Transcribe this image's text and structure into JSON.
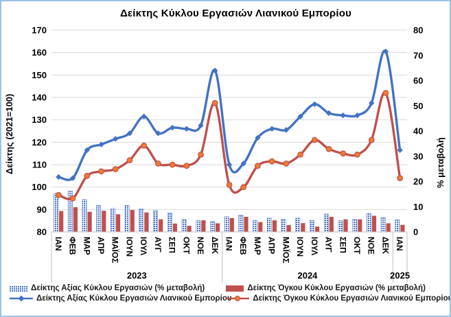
{
  "colors": {
    "value_blue": "#4472C4",
    "volume_red": "#C0504D",
    "marker_orange": "#ED7D31",
    "gridline": "#D9D9D9",
    "axis_line": "#BFBFBF",
    "frame_border": "#9DC3E6",
    "text": "#000000"
  },
  "chart_data": {
    "type": "combo: bars (secondary axis) + smoothed lines (primary axis)",
    "title": "Δείκτης Κύκλου Εργασιών Λιανικού Εμπορίου",
    "axis_left": {
      "title": "Δείκτης (2021=100)",
      "min": 80,
      "max": 170,
      "step": 10
    },
    "axis_right": {
      "title": "% μεταβολή",
      "min": 0,
      "max": 80,
      "step": 10
    },
    "grid": "horizontal only",
    "categories": [
      "ΙΑΝ",
      "ΦΕΒ",
      "ΜΑΡ",
      "ΑΠΡ",
      "ΜΑΪΟΣ",
      "ΙΟΥΝ",
      "ΙΟΥΛ",
      "ΑΥΓ",
      "ΣΕΠ",
      "ΟΚΤ",
      "ΝΟΕ",
      "ΔΕΚ",
      "ΙΑΝ",
      "ΦΕΒ",
      "ΜΑΡ",
      "ΑΠΡ",
      "ΜΑΪΟΣ",
      "ΙΟΥΝ",
      "ΙΟΥΛ",
      "ΑΥΓ",
      "ΣΕΠ",
      "ΟΚΤ",
      "ΝΟΕ",
      "ΔΕΚ",
      "ΙΑΝ"
    ],
    "year_groups": [
      {
        "label": "2023",
        "months": 12
      },
      {
        "label": "2024",
        "months": 12
      },
      {
        "label": "2025",
        "months": 1
      }
    ],
    "series": [
      {
        "name": "Δείκτης Αξίας Κύκλου Εργασιών (% μεταβολή)",
        "kind": "bar",
        "axis": "right",
        "color": "#4472C4",
        "fill": "hatched",
        "values": [
          15.2,
          16.2,
          12.8,
          10.5,
          9.3,
          10.5,
          9.1,
          8.5,
          7.5,
          4.9,
          4.6,
          4.1,
          6.1,
          6.7,
          4.6,
          5.5,
          5.0,
          5.5,
          4.6,
          7.1,
          4.5,
          5.0,
          7.3,
          5.7,
          4.8
        ]
      },
      {
        "name": "Δείκτης Όγκου Κύκλου Εργασιών (% μεταβολή)",
        "kind": "bar",
        "axis": "right",
        "color": "#C0504D",
        "fill": "solid",
        "values": [
          8.3,
          9.8,
          8.0,
          8.4,
          7.0,
          8.7,
          7.7,
          5.0,
          3.3,
          2.4,
          4.6,
          3.4,
          5.5,
          6.0,
          3.9,
          4.6,
          2.7,
          3.5,
          2.1,
          6.0,
          5.0,
          5.0,
          6.4,
          3.4,
          2.8
        ]
      },
      {
        "name": "Δείκτης Αξίας Κύκλου Εργασιών Λιανικού Εμπορίου",
        "kind": "line",
        "axis": "left",
        "color": "#4472C4",
        "marker": "diamond",
        "values": [
          104.5,
          104,
          116.5,
          119,
          121.5,
          124,
          131.5,
          124,
          126.5,
          126,
          127.5,
          152,
          110,
          110.5,
          122,
          126,
          125.5,
          131.5,
          137,
          133,
          132,
          132,
          137.5,
          160.5,
          116.5
        ]
      },
      {
        "name": "Δείκτης Όγκου Κύκλου Εργασιών Λιανικού Εμπορίου",
        "kind": "line",
        "axis": "left",
        "color": "#C0504D",
        "marker": "circle-orange",
        "values": [
          96.5,
          95,
          105,
          107,
          108,
          112,
          118.5,
          110.5,
          110,
          109.5,
          114.5,
          137.5,
          101,
          100,
          109.5,
          111.5,
          110.5,
          114.5,
          121,
          117,
          115,
          114.5,
          121,
          142,
          104
        ]
      }
    ]
  },
  "legend": {
    "items": [
      {
        "label": "Δείκτης Αξίας Κύκλου Εργασιών (% μεταβολή)"
      },
      {
        "label": "Δείκτης Όγκου Κύκλου Εργασιών (% μεταβολή)"
      },
      {
        "label": "Δείκτης Αξίας Κύκλου Εργασιών Λιανικού Εμπορίου"
      },
      {
        "label": "Δείκτης Όγκου Κύκλου Εργασιών Λιανικού Εμπορίου"
      }
    ]
  }
}
